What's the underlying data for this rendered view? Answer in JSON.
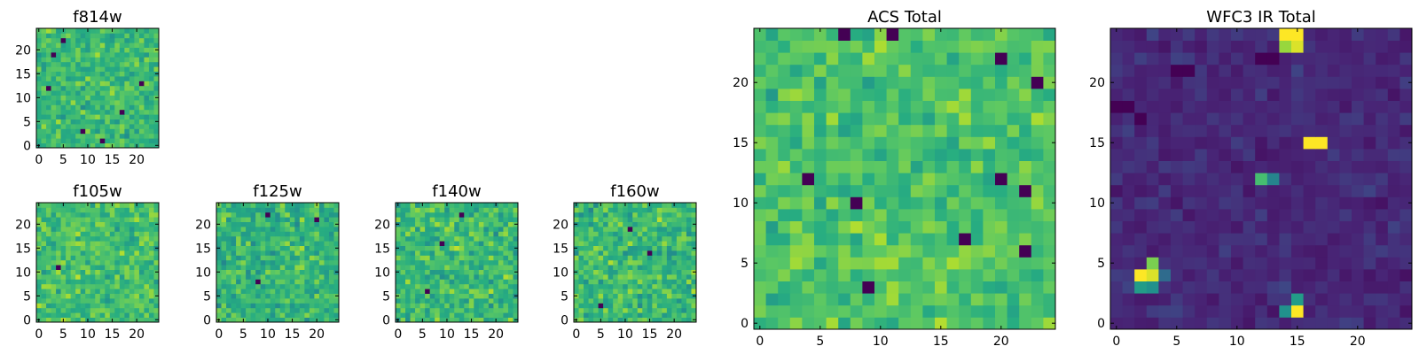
{
  "colormap": "viridis",
  "colors": {
    "viridis_low": "#440154",
    "viridis_mid": "#21918c",
    "viridis_high": "#fde725",
    "axis": "#000000",
    "background": "#ffffff"
  },
  "chart_data": [
    {
      "id": "f814w",
      "type": "heatmap",
      "title": "f814w",
      "grid_size": 25,
      "xlim": [
        -0.5,
        24.5
      ],
      "ylim": [
        -0.5,
        24.5
      ],
      "xticks": [
        0,
        5,
        10,
        15,
        20
      ],
      "yticks": [
        0,
        5,
        10,
        15,
        20
      ],
      "xtick_labels": [
        "0",
        "5",
        "10",
        "15",
        "20"
      ],
      "ytick_labels": [
        "0",
        "5",
        "10",
        "15",
        "20"
      ],
      "value_range": [
        0,
        1
      ],
      "base_level": 0.68,
      "noise": 0.22,
      "seed": 814,
      "hot_spots": [],
      "cold_spots": [
        [
          5,
          22
        ],
        [
          2,
          12
        ],
        [
          21,
          13
        ],
        [
          9,
          3
        ],
        [
          17,
          7
        ],
        [
          3,
          19
        ],
        [
          13,
          1
        ]
      ]
    },
    {
      "id": "f105w",
      "type": "heatmap",
      "title": "f105w",
      "grid_size": 25,
      "xlim": [
        -0.5,
        24.5
      ],
      "ylim": [
        -0.5,
        24.5
      ],
      "xticks": [
        0,
        5,
        10,
        15,
        20
      ],
      "yticks": [
        0,
        5,
        10,
        15,
        20
      ],
      "xtick_labels": [
        "0",
        "5",
        "10",
        "15",
        "20"
      ],
      "ytick_labels": [
        "0",
        "5",
        "10",
        "15",
        "20"
      ],
      "value_range": [
        0,
        1
      ],
      "base_level": 0.7,
      "noise": 0.22,
      "seed": 105,
      "hot_spots": [],
      "cold_spots": [
        [
          4,
          11
        ]
      ]
    },
    {
      "id": "f125w",
      "type": "heatmap",
      "title": "f125w",
      "grid_size": 25,
      "xlim": [
        -0.5,
        24.5
      ],
      "ylim": [
        -0.5,
        24.5
      ],
      "xticks": [
        0,
        5,
        10,
        15,
        20
      ],
      "yticks": [
        0,
        5,
        10,
        15,
        20
      ],
      "xtick_labels": [
        "0",
        "5",
        "10",
        "15",
        "20"
      ],
      "ytick_labels": [
        "0",
        "5",
        "10",
        "15",
        "20"
      ],
      "value_range": [
        0,
        1
      ],
      "base_level": 0.66,
      "noise": 0.25,
      "seed": 125,
      "hot_spots": [],
      "cold_spots": [
        [
          10,
          22
        ],
        [
          20,
          21
        ],
        [
          8,
          8
        ]
      ]
    },
    {
      "id": "f140w",
      "type": "heatmap",
      "title": "f140w",
      "grid_size": 25,
      "xlim": [
        -0.5,
        24.5
      ],
      "ylim": [
        -0.5,
        24.5
      ],
      "xticks": [
        0,
        5,
        10,
        15,
        20
      ],
      "yticks": [
        0,
        5,
        10,
        15,
        20
      ],
      "xtick_labels": [
        "0",
        "5",
        "10",
        "15",
        "20"
      ],
      "ytick_labels": [
        "0",
        "5",
        "10",
        "15",
        "20"
      ],
      "value_range": [
        0,
        1
      ],
      "base_level": 0.68,
      "noise": 0.25,
      "seed": 140,
      "hot_spots": [],
      "cold_spots": [
        [
          13,
          22
        ],
        [
          9,
          16
        ],
        [
          6,
          6
        ]
      ]
    },
    {
      "id": "f160w",
      "type": "heatmap",
      "title": "f160w",
      "grid_size": 25,
      "xlim": [
        -0.5,
        24.5
      ],
      "ylim": [
        -0.5,
        24.5
      ],
      "xticks": [
        0,
        5,
        10,
        15,
        20
      ],
      "yticks": [
        0,
        5,
        10,
        15,
        20
      ],
      "xtick_labels": [
        "0",
        "5",
        "10",
        "15",
        "20"
      ],
      "ytick_labels": [
        "0",
        "5",
        "10",
        "15",
        "20"
      ],
      "value_range": [
        0,
        1
      ],
      "base_level": 0.68,
      "noise": 0.25,
      "seed": 160,
      "hot_spots": [],
      "cold_spots": [
        [
          11,
          19
        ],
        [
          15,
          14
        ],
        [
          5,
          3
        ]
      ]
    },
    {
      "id": "acs-total",
      "type": "heatmap",
      "title": "ACS Total",
      "grid_size": 25,
      "xlim": [
        -0.5,
        24.5
      ],
      "ylim": [
        -0.5,
        24.5
      ],
      "xticks": [
        0,
        5,
        10,
        15,
        20
      ],
      "yticks": [
        0,
        5,
        10,
        15,
        20
      ],
      "xtick_labels": [
        "0",
        "5",
        "10",
        "15",
        "20"
      ],
      "ytick_labels": [
        "0",
        "5",
        "10",
        "15",
        "20"
      ],
      "value_range": [
        0,
        1
      ],
      "base_level": 0.72,
      "noise": 0.2,
      "seed": 777,
      "hot_spots": [],
      "cold_spots": [
        [
          7,
          24
        ],
        [
          11,
          24
        ],
        [
          20,
          22
        ],
        [
          23,
          20
        ],
        [
          4,
          12
        ],
        [
          20,
          12
        ],
        [
          22,
          11
        ],
        [
          8,
          10
        ],
        [
          17,
          7
        ],
        [
          22,
          6
        ],
        [
          9,
          3
        ]
      ]
    },
    {
      "id": "wfc3-ir-total",
      "type": "heatmap",
      "title": "WFC3 IR Total",
      "grid_size": 25,
      "xlim": [
        -0.5,
        24.5
      ],
      "ylim": [
        -0.5,
        24.5
      ],
      "xticks": [
        0,
        5,
        10,
        15,
        20
      ],
      "yticks": [
        0,
        5,
        10,
        15,
        20
      ],
      "xtick_labels": [
        "0",
        "5",
        "10",
        "15",
        "20"
      ],
      "ytick_labels": [
        "0",
        "5",
        "10",
        "15",
        "20"
      ],
      "value_range": [
        0,
        1
      ],
      "base_level": 0.14,
      "noise": 0.09,
      "seed": 3,
      "hot_spots": [
        [
          14,
          24,
          1.0
        ],
        [
          15,
          24,
          1.0
        ],
        [
          15,
          23,
          0.95
        ],
        [
          14,
          23,
          0.85
        ],
        [
          16,
          15,
          1.0
        ],
        [
          17,
          15,
          1.0
        ],
        [
          12,
          12,
          0.7
        ],
        [
          13,
          12,
          0.45
        ],
        [
          2,
          4,
          1.0
        ],
        [
          3,
          4,
          0.95
        ],
        [
          3,
          5,
          0.8
        ],
        [
          2,
          3,
          0.55
        ],
        [
          3,
          3,
          0.5
        ],
        [
          4,
          4,
          0.35
        ],
        [
          15,
          1,
          1.0
        ],
        [
          15,
          2,
          0.55
        ],
        [
          14,
          1,
          0.5
        ]
      ],
      "cold_spots": [
        [
          0,
          18
        ],
        [
          1,
          18
        ],
        [
          2,
          17
        ],
        [
          5,
          21
        ],
        [
          6,
          21
        ],
        [
          12,
          22
        ],
        [
          13,
          22
        ]
      ]
    }
  ]
}
